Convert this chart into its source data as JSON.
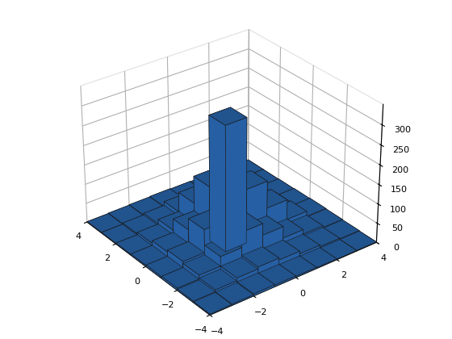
{
  "title": "",
  "xlim": [
    -4,
    4
  ],
  "ylim": [
    -4,
    4
  ],
  "zlim": [
    0,
    350
  ],
  "bin_edges": [
    -4,
    -3,
    -2,
    -1,
    0,
    1,
    2,
    3,
    4
  ],
  "counts": [
    [
      2,
      3,
      5,
      4,
      3,
      2,
      1,
      1
    ],
    [
      3,
      8,
      15,
      20,
      15,
      8,
      4,
      2
    ],
    [
      5,
      15,
      40,
      80,
      50,
      20,
      8,
      3
    ],
    [
      4,
      20,
      80,
      320,
      140,
      70,
      18,
      4
    ],
    [
      3,
      15,
      50,
      140,
      100,
      50,
      15,
      3
    ],
    [
      2,
      8,
      20,
      70,
      50,
      25,
      8,
      2
    ],
    [
      1,
      4,
      8,
      18,
      15,
      8,
      3,
      1
    ],
    [
      1,
      2,
      3,
      4,
      3,
      2,
      1,
      1
    ]
  ],
  "bar_color": "#2B6CB8",
  "bar_edge_color": "#1a1a1a",
  "elev": 30,
  "azim": -37.5
}
